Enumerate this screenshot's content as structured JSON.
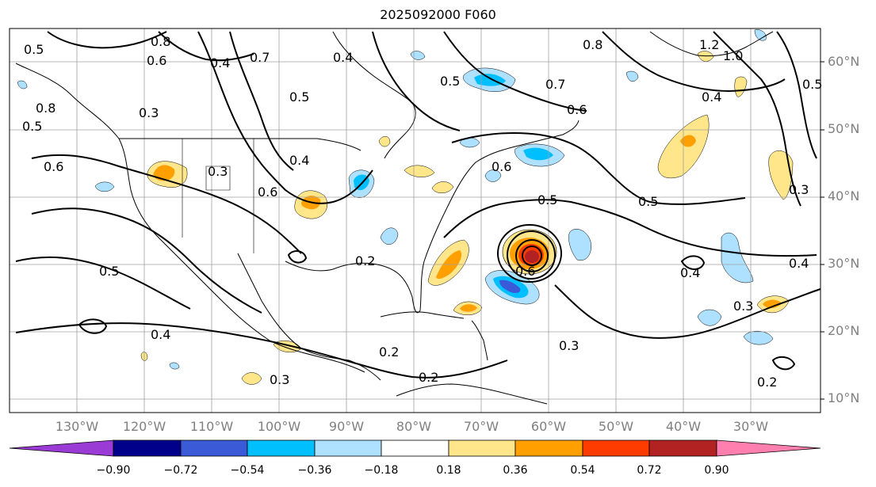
{
  "title": "2025092000 F060",
  "lat_labels": [
    "60°N",
    "50°N",
    "40°N",
    "30°N",
    "20°N",
    "10°N"
  ],
  "lon_labels": [
    "130°W",
    "120°W",
    "110°W",
    "100°W",
    "90°W",
    "80°W",
    "70°W",
    "60°W",
    "50°W",
    "40°W",
    "30°W"
  ],
  "colorbar": {
    "ticks": [
      "−0.90",
      "−0.72",
      "−0.54",
      "−0.36",
      "−0.18",
      "0.18",
      "0.36",
      "0.54",
      "0.72",
      "0.90"
    ],
    "colors": [
      "#9b3bd6",
      "#00008b",
      "#3a5ad8",
      "#00bfff",
      "#aee0ff",
      "#ffffff",
      "#ffe68a",
      "#ffa000",
      "#ff3c00",
      "#b22222",
      "#ff7fae"
    ]
  },
  "contour_labels": [
    "0.5",
    "0.8",
    "0.6",
    "0.4",
    "0.7",
    "0.3",
    "0.5",
    "0.6",
    "0.4",
    "0.5",
    "0.3",
    "0.4",
    "0.8",
    "0.5",
    "0.7",
    "0.6",
    "0.5",
    "0.4",
    "0.5",
    "0.6",
    "0.3",
    "0.2",
    "0.2",
    "0.2",
    "0.4",
    "0.5",
    "0.3",
    "0.4",
    "1.2",
    "1.0",
    "0.8",
    "0.5",
    "0.4",
    "0.3",
    "0.2",
    "0.3",
    "0.6",
    "0.6"
  ]
}
